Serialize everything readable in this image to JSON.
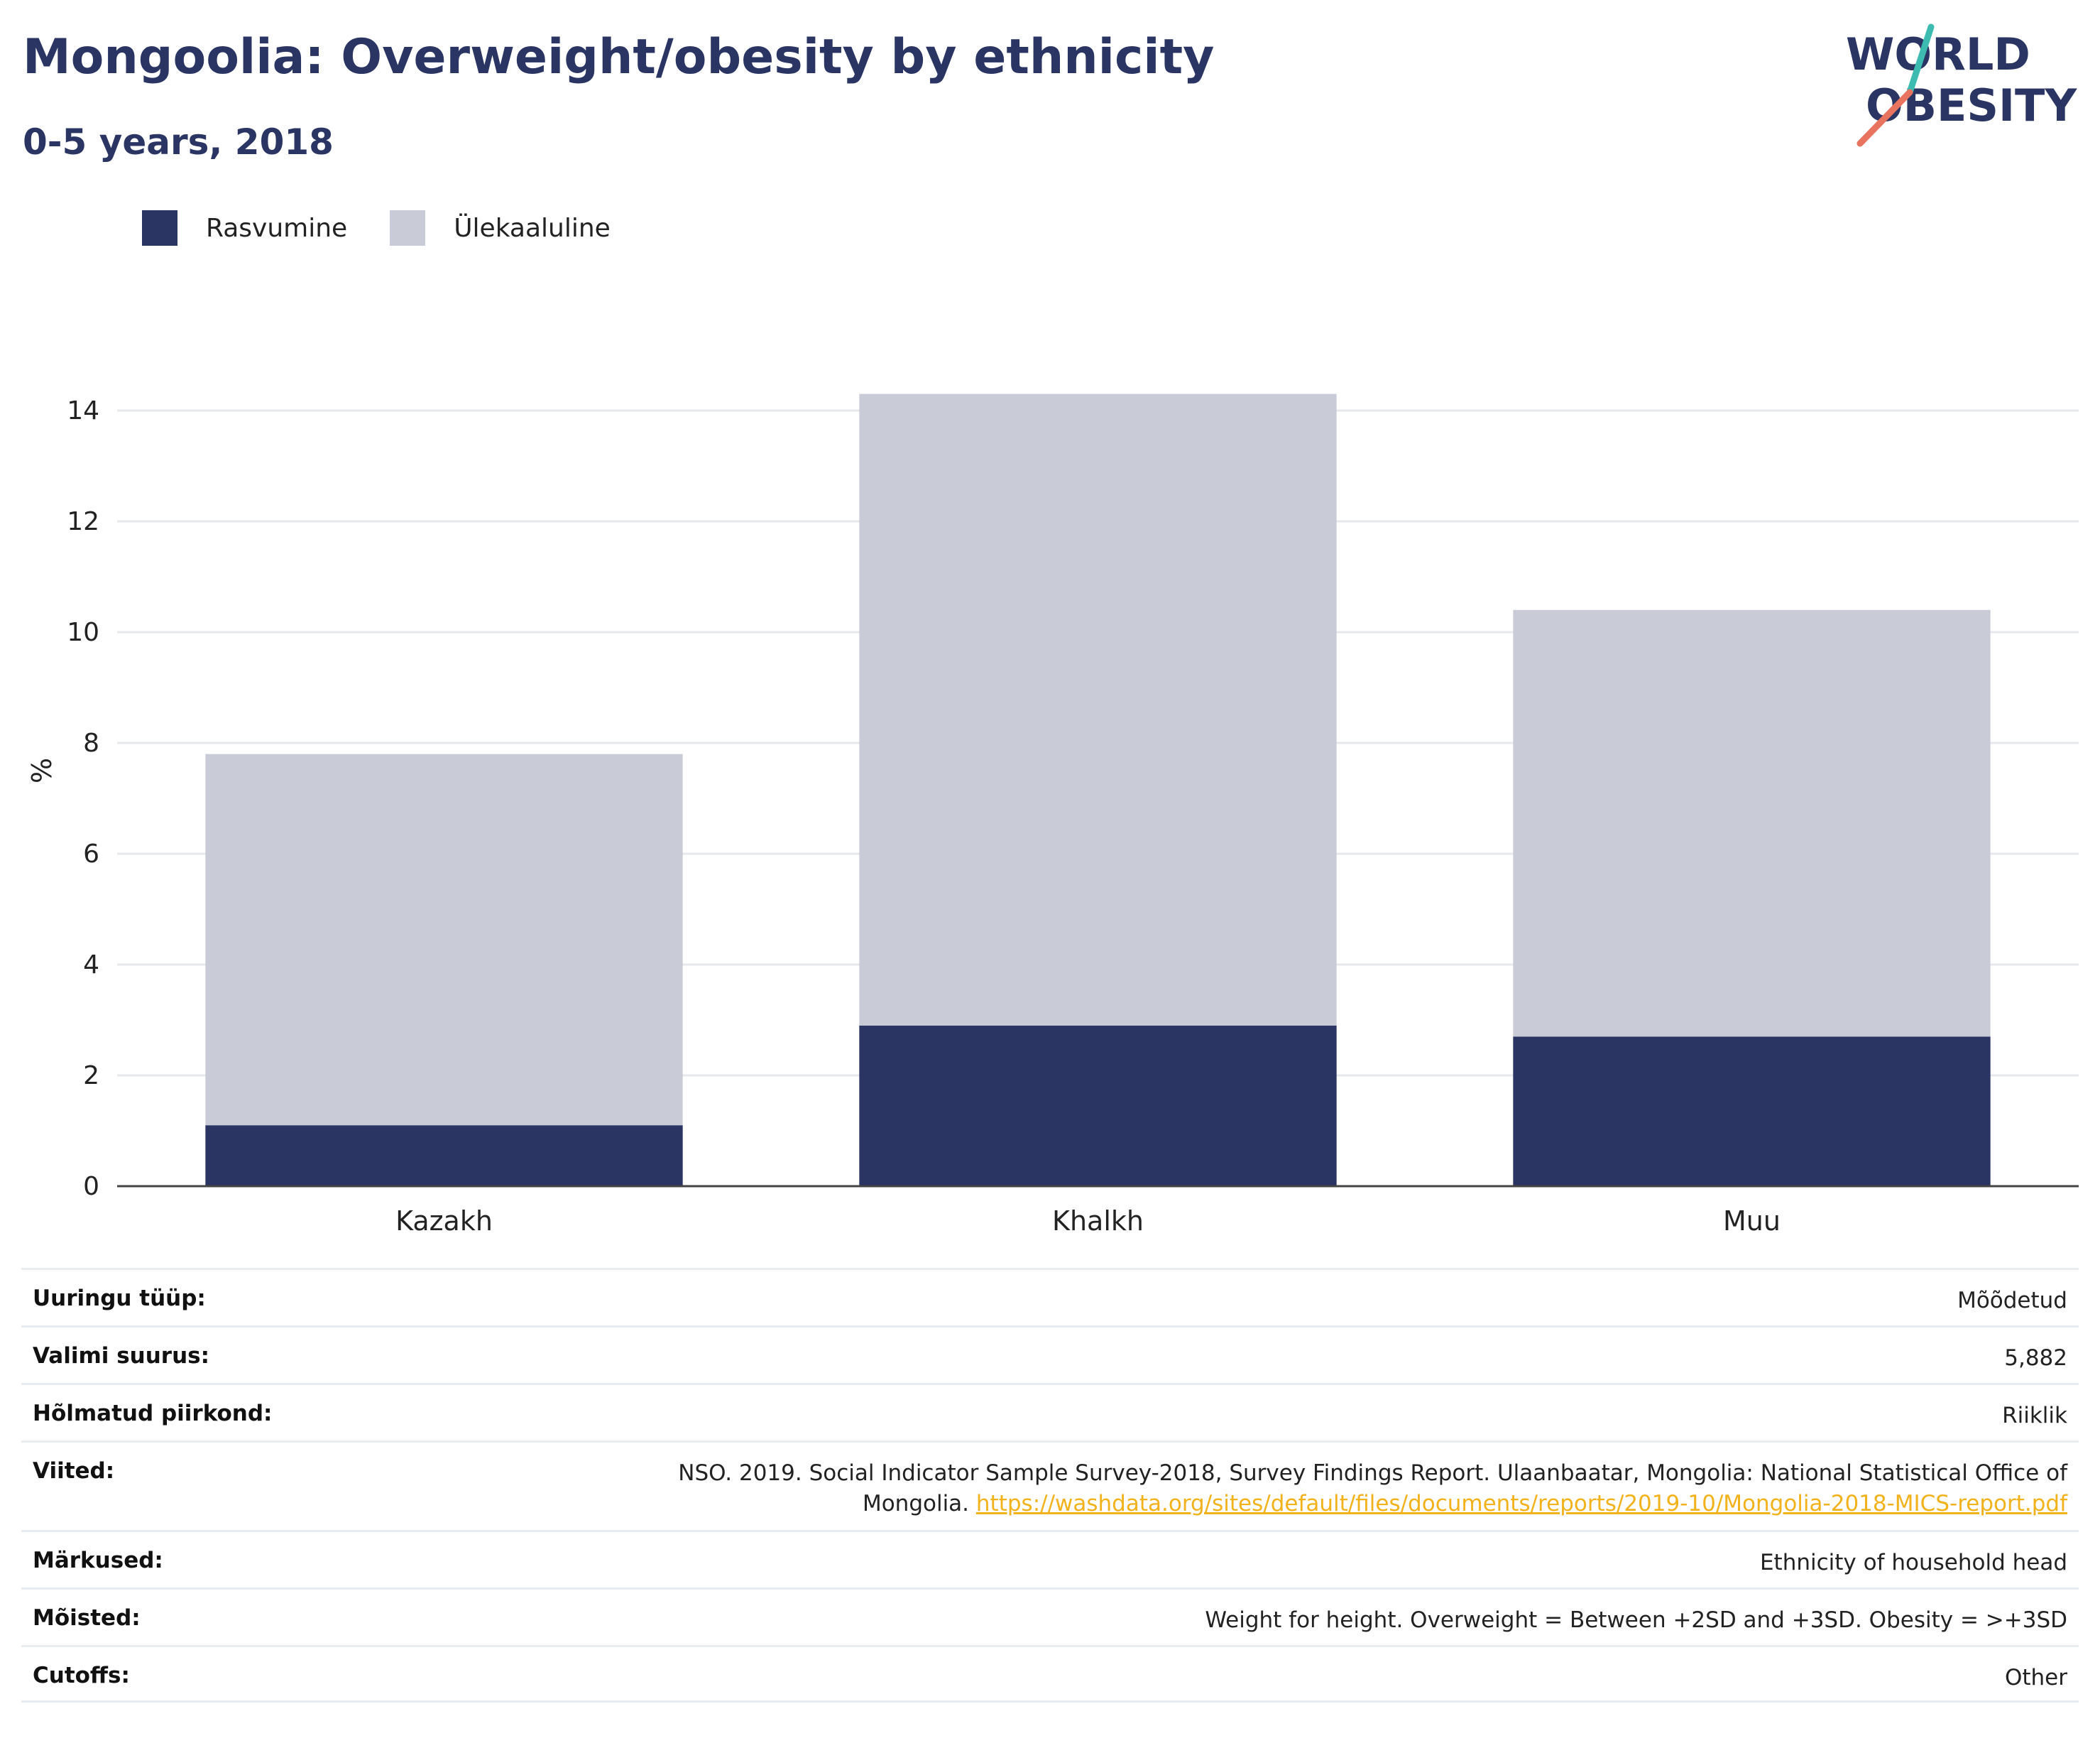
{
  "title": "Mongoolia: Overweight/obesity by ethnicity",
  "subtitle": "0-5 years, 2018",
  "logo": {
    "line1": "WORLD",
    "line2": "OBESITY"
  },
  "legend": [
    {
      "label": "Rasvumine",
      "color": "#2a3563"
    },
    {
      "label": "Ülekaaluline",
      "color": "#c9cbd6"
    }
  ],
  "chart_data": {
    "type": "bar",
    "stacked": true,
    "categories": [
      "Kazakh",
      "Khalkh",
      "Muu"
    ],
    "series": [
      {
        "name": "Rasvumine",
        "values": [
          1.1,
          2.9,
          2.7
        ],
        "color": "#2a3563"
      },
      {
        "name": "Ülekaaluline",
        "values": [
          6.7,
          11.4,
          7.7
        ],
        "color": "#c9cbd6"
      }
    ],
    "ylabel": "%",
    "xlabel": "",
    "ylim": [
      0,
      15
    ],
    "yticks": [
      0,
      2,
      4,
      6,
      8,
      10,
      12,
      14
    ],
    "grid": true,
    "legend_position": "top-left"
  },
  "meta": [
    {
      "label": "Uuringu tüüp:",
      "value": "Mõõdetud"
    },
    {
      "label": "Valimi suurus:",
      "value": "5,882"
    },
    {
      "label": "Hõlmatud piirkond:",
      "value": "Riiklik"
    },
    {
      "label": "Viited:",
      "value": "NSO. 2019. Social Indicator Sample Survey-2018, Survey Findings Report. Ulaanbaatar, Mongolia: National Statistical Office of Mongolia.",
      "link": "https://washdata.org/sites/default/files/documents/reports/2019-10/Mongolia-2018-MICS-report.pdf"
    },
    {
      "label": "Märkused:",
      "value": "Ethnicity of household head"
    },
    {
      "label": "Mõisted:",
      "value": "Weight for height. Overweight = Between +2SD and +3SD. Obesity = >+3SD"
    },
    {
      "label": "Cutoffs:",
      "value": "Other"
    }
  ]
}
